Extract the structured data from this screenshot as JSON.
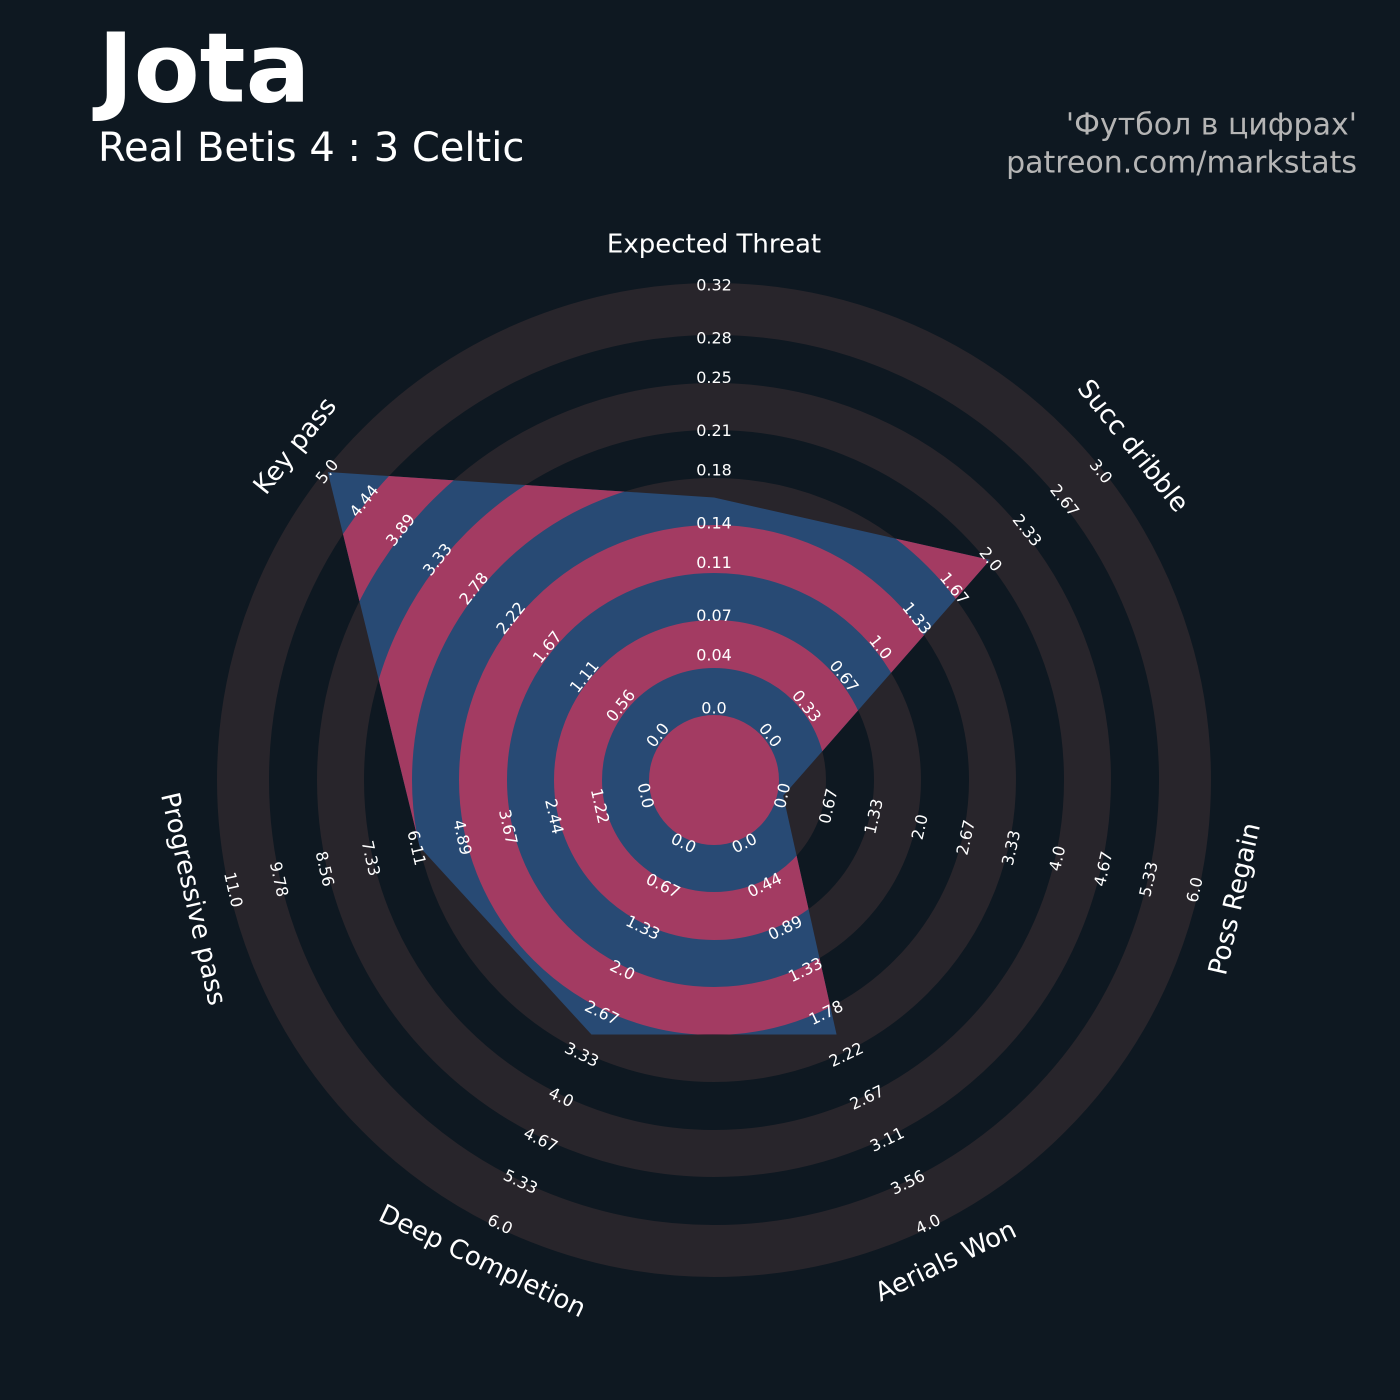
{
  "chart_data": {
    "type": "radar",
    "title": "Jota",
    "subtitle": "Real Betis 4 : 3 Celtic",
    "credits": [
      "'Футбол в цифрах'",
      "patreon.com/markstats"
    ],
    "series": [
      {
        "colors": [
          "#a33b62",
          "#284a74"
        ],
        "values": [
          0.16,
          2.0,
          0.0,
          2.0,
          3.0,
          6.0,
          5.0
        ]
      }
    ],
    "params": [
      "Expected Threat",
      "Succ dribble",
      "Poss Regain",
      "Aerials Won",
      "Deep Completion",
      "Progressive pass",
      "Key pass"
    ],
    "ticks": [
      [
        {
          "value": 0,
          "label": "0.0"
        },
        0.04,
        0.07,
        0.11,
        0.14,
        0.18,
        0.21,
        0.25,
        0.28,
        0.32
      ],
      [
        {
          "value": 0,
          "label": "0.0"
        },
        0.33,
        0.67,
        {
          "value": 1,
          "label": "1.0"
        },
        1.33,
        1.67,
        {
          "value": 2,
          "label": "2.0"
        },
        2.33,
        2.67,
        {
          "value": 3,
          "label": "3.0"
        }
      ],
      [
        {
          "value": 0,
          "label": "0.0"
        },
        0.67,
        1.33,
        {
          "value": 2,
          "label": "2.0"
        },
        2.67,
        3.33,
        {
          "value": 4,
          "label": "4.0"
        },
        4.67,
        5.33,
        {
          "value": 6,
          "label": "6.0"
        }
      ],
      [
        {
          "value": 0,
          "label": "0.0"
        },
        0.44,
        0.89,
        1.33,
        1.78,
        2.22,
        2.67,
        3.11,
        3.56,
        {
          "value": 4,
          "label": "4.0"
        }
      ],
      [
        {
          "value": 0,
          "label": "0.0"
        },
        0.67,
        1.33,
        {
          "value": 2,
          "label": "2.0"
        },
        2.67,
        3.33,
        {
          "value": 4,
          "label": "4.0"
        },
        4.67,
        5.33,
        {
          "value": 6,
          "label": "6.0"
        }
      ],
      [
        {
          "value": 0,
          "label": "0.0"
        },
        1.22,
        2.44,
        3.67,
        4.89,
        6.11,
        7.33,
        8.56,
        9.78,
        {
          "value": 11,
          "label": "11.0"
        }
      ],
      [
        {
          "value": 0,
          "label": "0.0"
        },
        0.56,
        1.11,
        1.67,
        2.22,
        2.78,
        3.33,
        3.89,
        4.44,
        {
          "value": 5,
          "label": "5.0"
        }
      ]
    ]
  }
}
